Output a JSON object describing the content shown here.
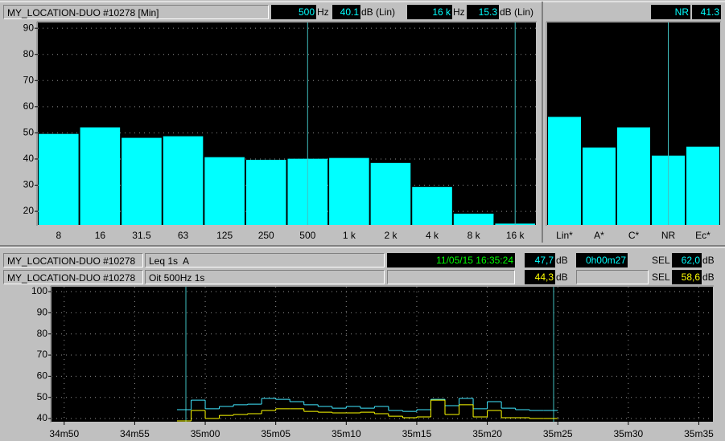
{
  "spectrum_header": {
    "title": "MY_LOCATION-DUO #10278 [Min]",
    "freq1": "500",
    "freq1_unit": "Hz",
    "level1": "40.1",
    "level1_unit": "dB (Lin)",
    "freq2": "16 k",
    "freq2_unit": "Hz",
    "level2": "15.3",
    "level2_unit": "dB (Lin)"
  },
  "weighting_header": {
    "label": "NR",
    "value": "41.3"
  },
  "time_header": {
    "rows": [
      {
        "source": "MY_LOCATION-DUO #10278",
        "datetime": "11/05/15 16:35:24",
        "level": "47,7",
        "level_unit": "dB",
        "duration": "0h00m27",
        "sel_label": "SEL",
        "sel": "62,0",
        "sel_unit": "dB"
      },
      {
        "source": "MY_LOCATION-DUO #10278",
        "level": "44,3",
        "level_unit": "dB",
        "sel_label": "SEL",
        "sel": "58,6",
        "sel_unit": "dB"
      }
    ]
  },
  "chart_data": [
    {
      "type": "bar",
      "categories": [
        "8",
        "16",
        "31.5",
        "63",
        "125",
        "250",
        "500",
        "1 k",
        "2 k",
        "4 k",
        "8 k",
        "16 k"
      ],
      "values": [
        49.6,
        52.1,
        48.1,
        48.7,
        40.7,
        39.7,
        40.1,
        40.4,
        38.5,
        29.3,
        19.1,
        15.3
      ],
      "color": "#00ffff",
      "ylim": [
        14.8,
        92.2
      ],
      "yticks": [
        20,
        30,
        40,
        50,
        60,
        70,
        80,
        90
      ],
      "grid": true
    },
    {
      "type": "bar",
      "categories": [
        "Lin*",
        "A*",
        "C*",
        "NR",
        "Ec*"
      ],
      "values": [
        56.1,
        44.4,
        52.1,
        41.3,
        44.7
      ],
      "color": "#00ffff",
      "ylim": [
        14.8,
        92.2
      ],
      "grid": false
    },
    {
      "type": "step",
      "x": [
        2098,
        2099,
        2100,
        2101,
        2102,
        2103,
        2104,
        2105,
        2106,
        2107,
        2108,
        2109,
        2110,
        2111,
        2112,
        2113,
        2114,
        2115,
        2116,
        2117,
        2118,
        2119,
        2120,
        2121,
        2122,
        2123,
        2124
      ],
      "series": [
        {
          "name": "Leq 1s  A",
          "color": "#40e8ff",
          "values": [
            44.2,
            48.7,
            44.6,
            45.7,
            46.5,
            46.8,
            49.5,
            49.1,
            48.0,
            46.5,
            45.7,
            44.9,
            45.7,
            44.9,
            45.7,
            43.8,
            43.4,
            44.2,
            49.1,
            46.1,
            49.5,
            44.6,
            48.0,
            44.9,
            44.2,
            43.8,
            43.8
          ]
        },
        {
          "name": "Oit 500Hz 1s",
          "color": "#ffff00",
          "values": [
            38.9,
            43.8,
            40.0,
            41.5,
            41.9,
            42.3,
            43.8,
            44.6,
            44.6,
            43.4,
            43.0,
            42.7,
            42.7,
            43.0,
            42.3,
            41.1,
            40.4,
            40.8,
            48.7,
            41.9,
            46.5,
            40.8,
            43.8,
            40.4,
            40.4,
            40.0,
            40.0
          ]
        }
      ],
      "xlim": [
        2089.1,
        2136.0
      ],
      "xticks": [
        {
          "value": 2090,
          "label": "34m50"
        },
        {
          "value": 2095,
          "label": "34m55"
        },
        {
          "value": 2100,
          "label": "35m00"
        },
        {
          "value": 2105,
          "label": "35m05"
        },
        {
          "value": 2110,
          "label": "35m10"
        },
        {
          "value": 2115,
          "label": "35m15"
        },
        {
          "value": 2120,
          "label": "35m20"
        },
        {
          "value": 2125,
          "label": "35m25"
        },
        {
          "value": 2130,
          "label": "35m30"
        },
        {
          "value": 2135,
          "label": "35m35"
        }
      ],
      "ylim": [
        38.5,
        102.3
      ],
      "yticks": [
        40,
        50,
        60,
        70,
        80,
        90,
        100
      ],
      "grid": true
    }
  ]
}
